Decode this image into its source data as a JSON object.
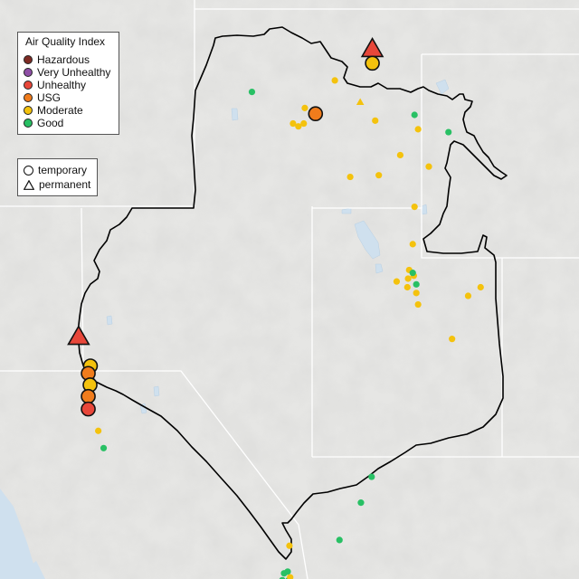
{
  "legend": {
    "title": "Air Quality Index",
    "categories": [
      {
        "label": "Hazardous",
        "color": "#7e2b24"
      },
      {
        "label": "Very Unhealthy",
        "color": "#8f4fa6"
      },
      {
        "label": "Unhealthy",
        "color": "#e8473a"
      },
      {
        "label": "USG",
        "color": "#f07c1c"
      },
      {
        "label": "Moderate",
        "color": "#f4c20d"
      },
      {
        "label": "Good",
        "color": "#28c064"
      }
    ],
    "monitor_types": [
      {
        "label": "temporary",
        "symbol": "circle"
      },
      {
        "label": "permanent",
        "symbol": "triangle"
      }
    ]
  },
  "map_style": {
    "terrain": "#e6e6e4",
    "water": "#cfe0ee",
    "state_lines": "#ffffff",
    "region_outline": "#000000"
  },
  "monitors": [
    {
      "aqi": "Unhealthy",
      "type": "permanent",
      "size": "large",
      "lon": -114.08,
      "lat": 48.84
    },
    {
      "aqi": "Moderate",
      "type": "temporary",
      "size": "large",
      "lon": -114.08,
      "lat": 48.6
    },
    {
      "aqi": "USG",
      "type": "temporary",
      "size": "large",
      "lon": -115.67,
      "lat": 47.72
    },
    {
      "aqi": "Unhealthy",
      "type": "permanent",
      "size": "large",
      "lon": -122.3,
      "lat": 43.83
    },
    {
      "aqi": "Moderate",
      "type": "temporary",
      "size": "large",
      "lon": -121.97,
      "lat": 43.33
    },
    {
      "aqi": "USG",
      "type": "temporary",
      "size": "large",
      "lon": -122.03,
      "lat": 43.2
    },
    {
      "aqi": "Moderate",
      "type": "temporary",
      "size": "large",
      "lon": -121.98,
      "lat": 43.0
    },
    {
      "aqi": "USG",
      "type": "temporary",
      "size": "large",
      "lon": -122.03,
      "lat": 42.8
    },
    {
      "aqi": "Unhealthy",
      "type": "temporary",
      "size": "large",
      "lon": -122.03,
      "lat": 42.58
    },
    {
      "aqi": "Moderate",
      "type": "temporary",
      "size": "small",
      "lon": -115.13,
      "lat": 48.3
    },
    {
      "aqi": "Moderate",
      "type": "permanent",
      "size": "small",
      "lon": -114.42,
      "lat": 47.92
    },
    {
      "aqi": "Moderate",
      "type": "temporary",
      "size": "small",
      "lon": -115.97,
      "lat": 47.82
    },
    {
      "aqi": "Moderate",
      "type": "temporary",
      "size": "small",
      "lon": -116.3,
      "lat": 47.55
    },
    {
      "aqi": "Moderate",
      "type": "temporary",
      "size": "small",
      "lon": -116.0,
      "lat": 47.55
    },
    {
      "aqi": "Moderate",
      "type": "temporary",
      "size": "small",
      "lon": -116.15,
      "lat": 47.5
    },
    {
      "aqi": "Moderate",
      "type": "temporary",
      "size": "small",
      "lon": -114.0,
      "lat": 47.6
    },
    {
      "aqi": "Moderate",
      "type": "temporary",
      "size": "small",
      "lon": -112.8,
      "lat": 47.45
    },
    {
      "aqi": "Moderate",
      "type": "temporary",
      "size": "small",
      "lon": -113.3,
      "lat": 47.0
    },
    {
      "aqi": "Moderate",
      "type": "temporary",
      "size": "small",
      "lon": -112.5,
      "lat": 46.8
    },
    {
      "aqi": "Moderate",
      "type": "temporary",
      "size": "small",
      "lon": -114.7,
      "lat": 46.62
    },
    {
      "aqi": "Moderate",
      "type": "temporary",
      "size": "small",
      "lon": -113.9,
      "lat": 46.65
    },
    {
      "aqi": "Moderate",
      "type": "temporary",
      "size": "small",
      "lon": -112.9,
      "lat": 46.1
    },
    {
      "aqi": "Moderate",
      "type": "temporary",
      "size": "small",
      "lon": -112.95,
      "lat": 45.45
    },
    {
      "aqi": "Moderate",
      "type": "temporary",
      "size": "small",
      "lon": -113.05,
      "lat": 45.0
    },
    {
      "aqi": "Moderate",
      "type": "temporary",
      "size": "small",
      "lon": -113.08,
      "lat": 44.85
    },
    {
      "aqi": "Moderate",
      "type": "temporary",
      "size": "small",
      "lon": -112.92,
      "lat": 44.9
    },
    {
      "aqi": "Moderate",
      "type": "temporary",
      "size": "small",
      "lon": -113.4,
      "lat": 44.8
    },
    {
      "aqi": "Moderate",
      "type": "temporary",
      "size": "small",
      "lon": -113.1,
      "lat": 44.7
    },
    {
      "aqi": "Moderate",
      "type": "temporary",
      "size": "small",
      "lon": -112.85,
      "lat": 44.6
    },
    {
      "aqi": "Moderate",
      "type": "temporary",
      "size": "small",
      "lon": -112.8,
      "lat": 44.4
    },
    {
      "aqi": "Moderate",
      "type": "temporary",
      "size": "small",
      "lon": -111.4,
      "lat": 44.55
    },
    {
      "aqi": "Moderate",
      "type": "temporary",
      "size": "small",
      "lon": -111.05,
      "lat": 44.7
    },
    {
      "aqi": "Moderate",
      "type": "temporary",
      "size": "small",
      "lon": -111.85,
      "lat": 43.8
    },
    {
      "aqi": "Moderate",
      "type": "temporary",
      "size": "small",
      "lon": -121.75,
      "lat": 42.2
    },
    {
      "aqi": "Moderate",
      "type": "temporary",
      "size": "small",
      "lon": -116.4,
      "lat": 40.2
    },
    {
      "aqi": "Good",
      "type": "temporary",
      "size": "small",
      "lon": -117.45,
      "lat": 48.1
    },
    {
      "aqi": "Good",
      "type": "temporary",
      "size": "small",
      "lon": -112.9,
      "lat": 47.7
    },
    {
      "aqi": "Good",
      "type": "temporary",
      "size": "small",
      "lon": -111.95,
      "lat": 47.4
    },
    {
      "aqi": "Good",
      "type": "temporary",
      "size": "small",
      "lon": -112.95,
      "lat": 44.95
    },
    {
      "aqi": "Good",
      "type": "temporary",
      "size": "small",
      "lon": -112.85,
      "lat": 44.75
    },
    {
      "aqi": "Good",
      "type": "temporary",
      "size": "small",
      "lon": -121.6,
      "lat": 41.9
    },
    {
      "aqi": "Good",
      "type": "temporary",
      "size": "small",
      "lon": -114.1,
      "lat": 41.4
    },
    {
      "aqi": "Good",
      "type": "temporary",
      "size": "small",
      "lon": -114.4,
      "lat": 40.95
    },
    {
      "aqi": "Good",
      "type": "temporary",
      "size": "small",
      "lon": -115.0,
      "lat": 40.3
    },
    {
      "aqi": "Good",
      "type": "temporary",
      "size": "small",
      "lon": -116.55,
      "lat": 39.72
    },
    {
      "aqi": "Good",
      "type": "temporary",
      "size": "small",
      "lon": -116.45,
      "lat": 39.75
    },
    {
      "aqi": "Good",
      "type": "temporary",
      "size": "small",
      "lon": -116.6,
      "lat": 39.6
    },
    {
      "aqi": "Good",
      "type": "temporary",
      "size": "small",
      "lon": -116.42,
      "lat": 39.6
    },
    {
      "aqi": "Good",
      "type": "temporary",
      "size": "small",
      "lon": -116.65,
      "lat": 39.45
    },
    {
      "aqi": "Good",
      "type": "temporary",
      "size": "small",
      "lon": -116.15,
      "lat": 39.45
    },
    {
      "aqi": "Good",
      "type": "temporary",
      "size": "small",
      "lon": -116.55,
      "lat": 39.3
    },
    {
      "aqi": "Moderate",
      "type": "temporary",
      "size": "small",
      "lon": -116.38,
      "lat": 39.65
    }
  ]
}
